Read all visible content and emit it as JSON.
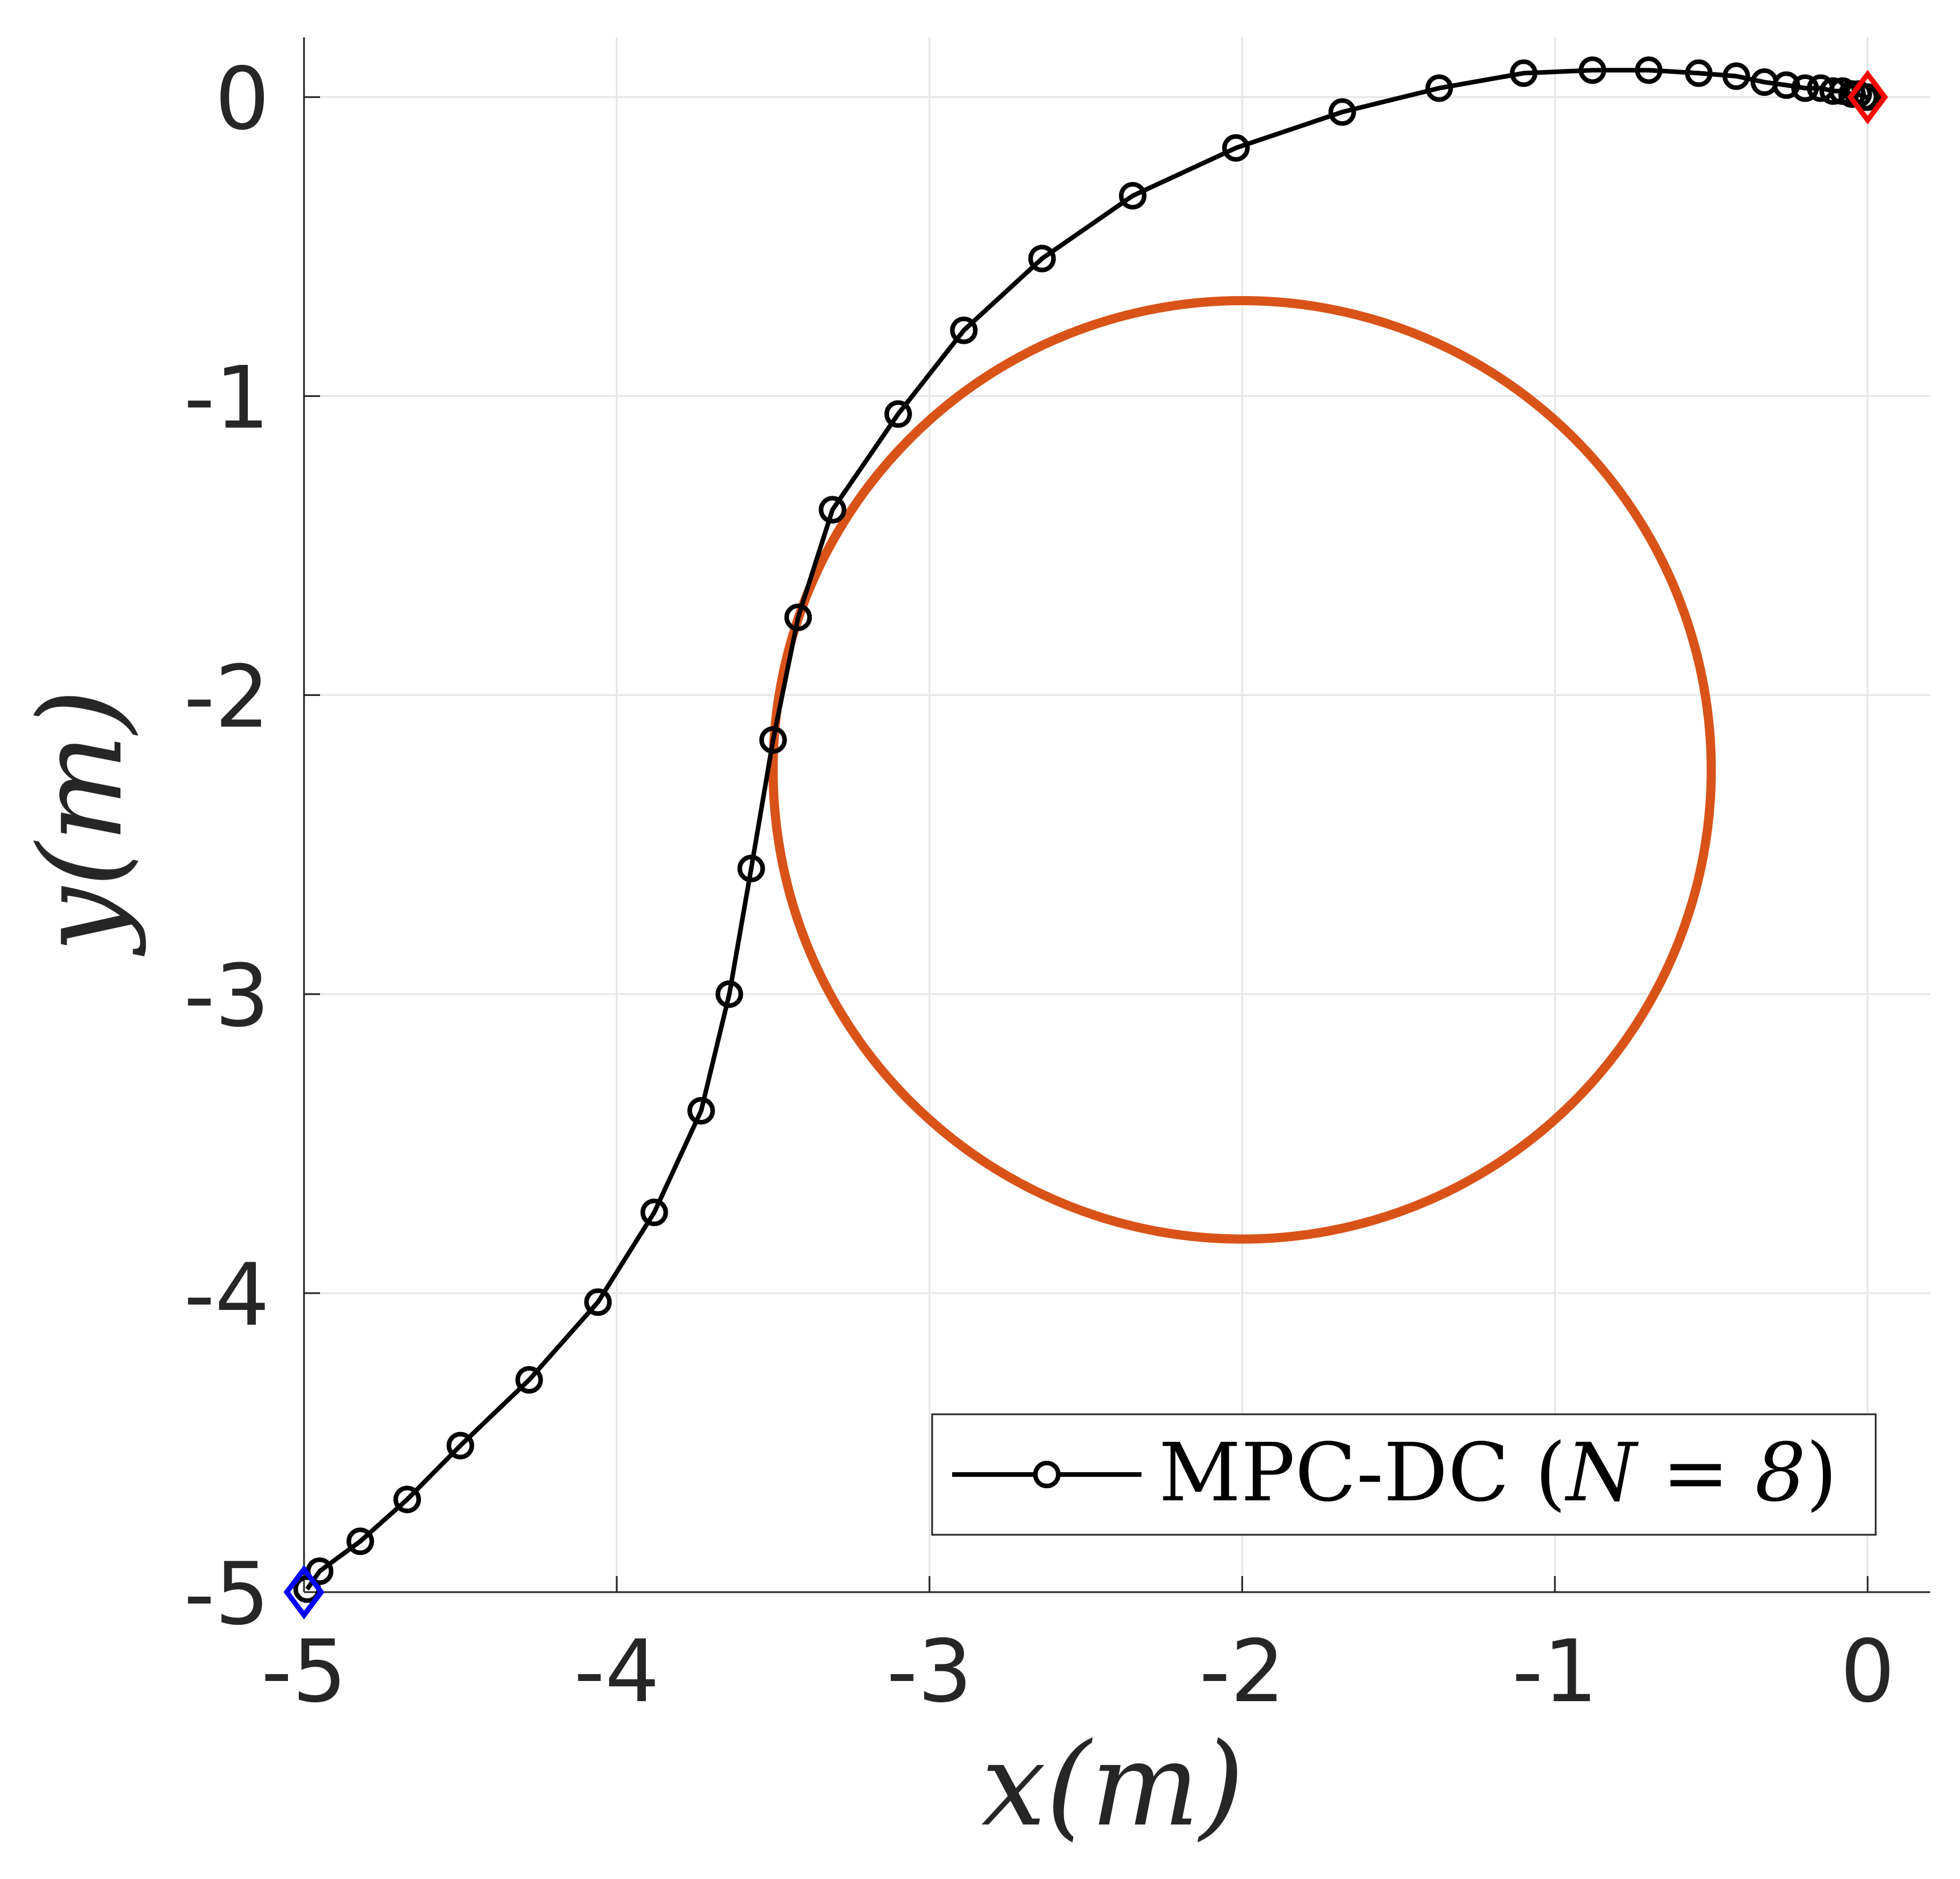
{
  "chart_data": {
    "type": "scatter",
    "title": "",
    "xlabel": "x(m)",
    "ylabel": "y(m)",
    "xlim": [
      -5,
      0.2
    ],
    "ylim": [
      -5,
      0.2
    ],
    "xticks": [
      -5,
      -4,
      -3,
      -2,
      -1,
      0
    ],
    "yticks": [
      -5,
      -4,
      -3,
      -2,
      -1,
      0
    ],
    "xtick_labels": [
      "-5",
      "-4",
      "-3",
      "-2",
      "-1",
      "0"
    ],
    "ytick_labels": [
      "-5",
      "-4",
      "-3",
      "-2",
      "-1",
      "0"
    ],
    "grid": true,
    "legend_position": "bottom-right",
    "series": [
      {
        "name": "MPC-DC (N = 8)",
        "legend_prefix": "MPC-DC (",
        "legend_math": "N = 8",
        "legend_suffix": ")",
        "style": "line-circle-markers",
        "color": "#000000",
        "x": [
          -4.99,
          -4.95,
          -4.82,
          -4.67,
          -4.5,
          -4.28,
          -4.06,
          -3.88,
          -3.73,
          -3.64,
          -3.57,
          -3.5,
          -3.42,
          -3.31,
          -3.1,
          -2.89,
          -2.64,
          -2.35,
          -2.02,
          -1.68,
          -1.37,
          -1.1,
          -0.88,
          -0.7,
          -0.54,
          -0.42,
          -0.33,
          -0.26,
          -0.2,
          -0.15,
          -0.11,
          -0.08,
          -0.05,
          -0.03,
          -0.01,
          0.0
        ],
        "y": [
          -4.99,
          -4.93,
          -4.83,
          -4.69,
          -4.51,
          -4.29,
          -4.03,
          -3.73,
          -3.39,
          -3.0,
          -2.58,
          -2.15,
          -1.74,
          -1.38,
          -1.06,
          -0.78,
          -0.54,
          -0.33,
          -0.17,
          -0.05,
          0.03,
          0.08,
          0.09,
          0.09,
          0.08,
          0.07,
          0.05,
          0.04,
          0.03,
          0.03,
          0.02,
          0.02,
          0.01,
          0.01,
          0.0,
          0.0
        ]
      }
    ],
    "obstacle": {
      "shape": "circle",
      "center": [
        -2.0,
        -2.25
      ],
      "radius": 1.5,
      "color": "#D95319"
    },
    "start_marker": {
      "x": -5,
      "y": -5,
      "shape": "diamond",
      "color": "#0000FF"
    },
    "goal_marker": {
      "x": 0,
      "y": 0,
      "shape": "diamond",
      "color": "#FF0000"
    }
  }
}
